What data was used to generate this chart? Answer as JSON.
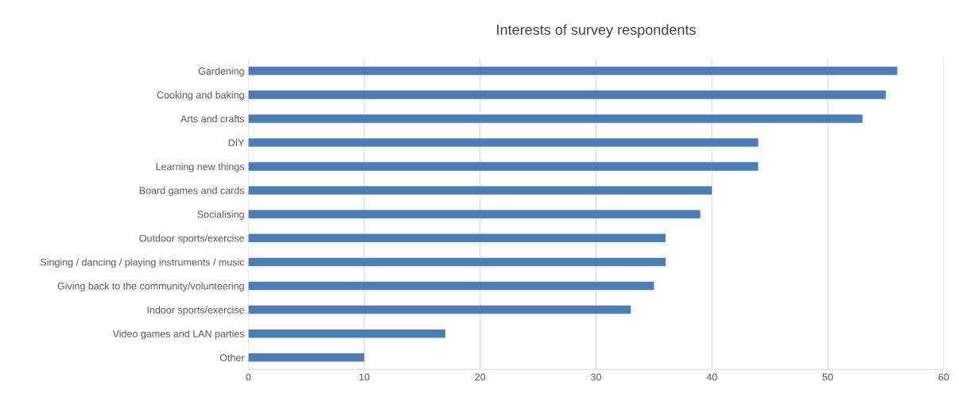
{
  "chart_data": {
    "type": "bar",
    "orientation": "horizontal",
    "title": "Interests of survey respondents",
    "categories": [
      "Gardening",
      "Cooking and baking",
      "Arts and crafts",
      "DIY",
      "Learning new things",
      "Board games and cards",
      "Socialising",
      "Outdoor sports/exercise",
      "Singing / dancing / playing instruments / music",
      "Giving back to the community/volunteering",
      "Indoor sports/exercise",
      "Video games and LAN parties",
      "Other"
    ],
    "values": [
      56,
      55,
      53,
      44,
      44,
      40,
      39,
      36,
      36,
      35,
      33,
      17,
      10
    ],
    "color": "#4a7ebb",
    "xlim": [
      0,
      60
    ],
    "xticks": [
      0,
      10,
      20,
      30,
      40,
      50,
      60
    ],
    "grid": "x",
    "legend": false
  }
}
